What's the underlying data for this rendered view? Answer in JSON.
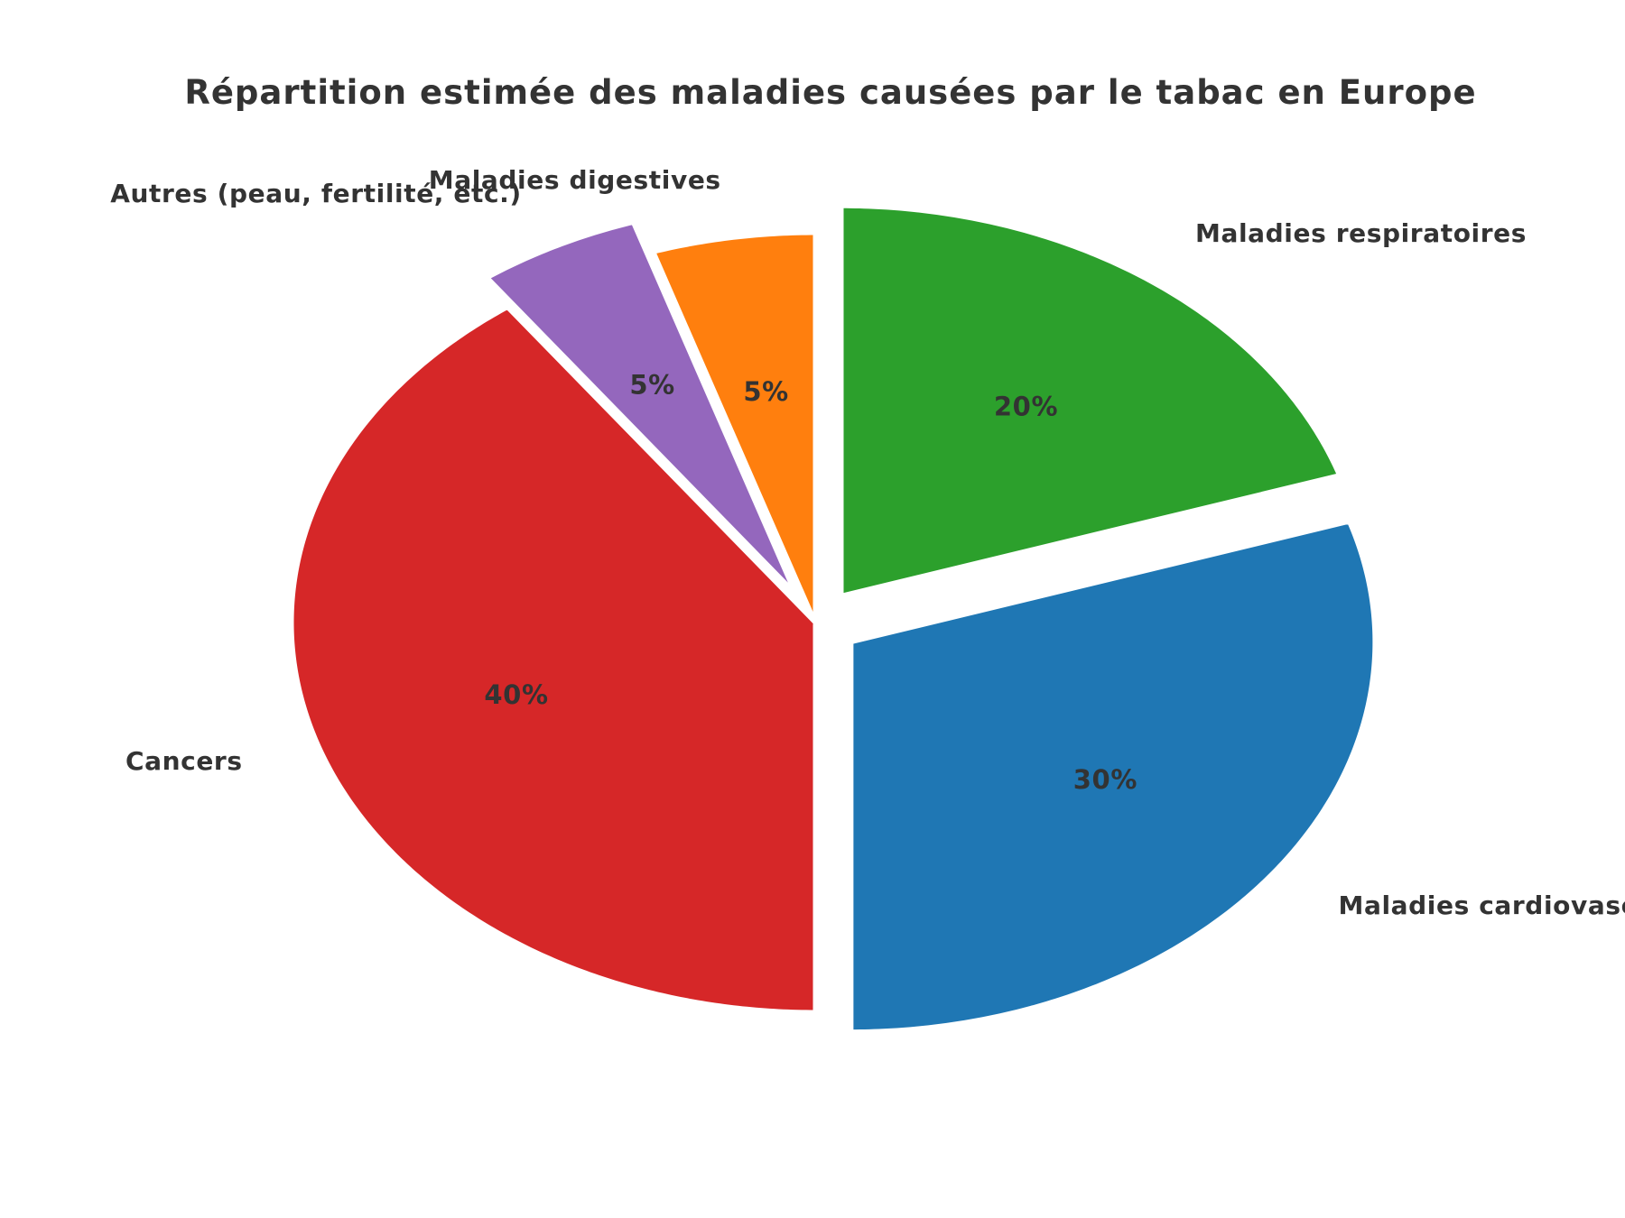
{
  "chart_data": {
    "type": "pie",
    "title": "Répartition estimée des maladies causées par le tabac en Europe",
    "start_angle": 90,
    "direction": "counterclockwise",
    "slices": [
      {
        "label": "Maladies digestives",
        "value": 5,
        "pct_label": "5%",
        "color": "#ff7f0e",
        "exploded": false
      },
      {
        "label": "Autres (peau, fertilité, etc.)",
        "value": 5,
        "pct_label": "5%",
        "color": "#9467bd",
        "exploded": true
      },
      {
        "label": "Cancers",
        "value": 40,
        "pct_label": "40%",
        "color": "#d62728",
        "exploded": false
      },
      {
        "label": "Maladies cardiovasculaires",
        "value": 30,
        "pct_label": "30%",
        "color": "#1f77b4",
        "exploded": true
      },
      {
        "label": "Maladies respiratoires",
        "value": 20,
        "pct_label": "20%",
        "color": "#2ca02c",
        "exploded": true
      }
    ]
  }
}
